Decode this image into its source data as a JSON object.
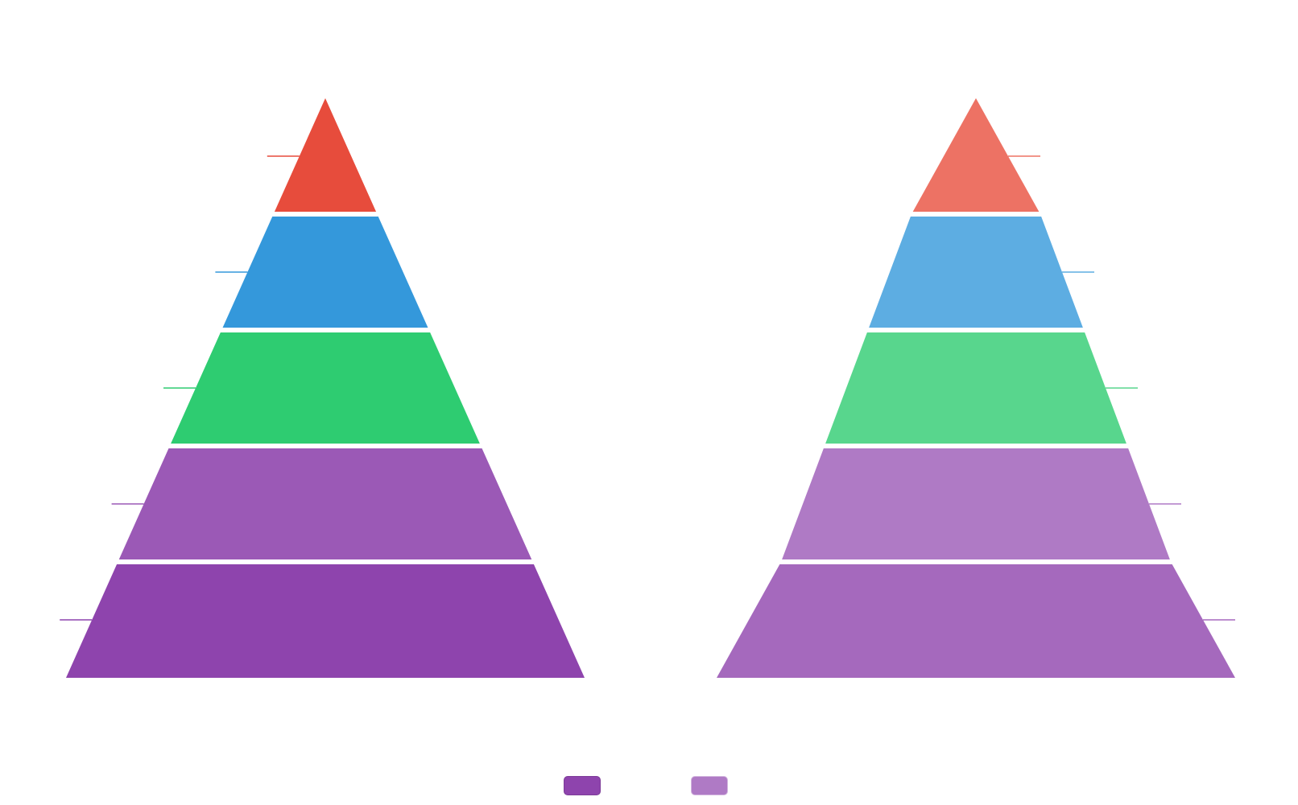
{
  "chart_data": [
    {
      "type": "pyramid",
      "categories": [
        "",
        "",
        "",
        "",
        ""
      ],
      "values": [
        1,
        1,
        1,
        1,
        1
      ],
      "colors": [
        "#e74c3c",
        "#3498db",
        "#2ecc71",
        "#9b59b6",
        "#8e44ad"
      ],
      "label_side": "left",
      "shape": "linear"
    },
    {
      "type": "pyramid",
      "categories": [
        "",
        "",
        "",
        "",
        ""
      ],
      "values": [
        1,
        1,
        1,
        1,
        1
      ],
      "colors": [
        "#ed7264",
        "#5dade2",
        "#58d68d",
        "#af7ac5",
        "#a569bd"
      ],
      "label_side": "right",
      "shape": "curved"
    }
  ],
  "legend": {
    "placement": "bottom",
    "items": [
      {
        "label": "",
        "color": "#8e44ad",
        "border": "#7d3c98"
      },
      {
        "label": "",
        "color": "#af7ac5",
        "border": "#d2b4de"
      }
    ]
  }
}
